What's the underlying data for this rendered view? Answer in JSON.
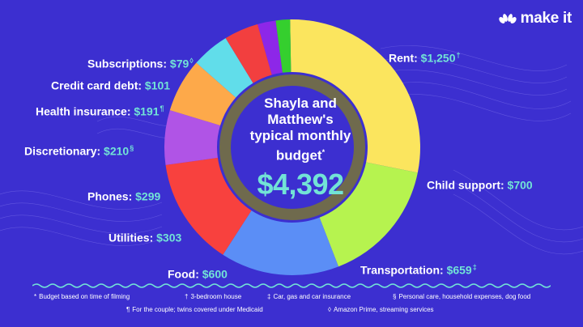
{
  "brand": {
    "name": "make it"
  },
  "colors": {
    "background": "#3c2fd0",
    "accent": "#72e3d6",
    "ring": "#6f6a4d"
  },
  "center": {
    "title_lines": [
      "Shayla and",
      "Matthew's",
      "typical monthly",
      "budget"
    ],
    "title_mark": "*",
    "total": "$4,392"
  },
  "labels": [
    {
      "name": "Rent: ",
      "value": "$1,250",
      "mark": "†"
    },
    {
      "name": "Child support: ",
      "value": "$700",
      "mark": ""
    },
    {
      "name": "Transportation: ",
      "value": "$659",
      "mark": "‡"
    },
    {
      "name": "Food: ",
      "value": "$600",
      "mark": ""
    },
    {
      "name": "Utilities: ",
      "value": "$303",
      "mark": ""
    },
    {
      "name": "Phones: ",
      "value": "$299",
      "mark": ""
    },
    {
      "name": "Discretionary: ",
      "value": "$210",
      "mark": "§"
    },
    {
      "name": "Health insurance: ",
      "value": "$191",
      "mark": "¶"
    },
    {
      "name": "Credit card debt: ",
      "value": "$101",
      "mark": ""
    },
    {
      "name": "Subscriptions: ",
      "value": "$79",
      "mark": "◊"
    }
  ],
  "chart_data": {
    "type": "pie",
    "title": "Shayla and Matthew's typical monthly budget*",
    "total": 4392,
    "categories": [
      "Rent",
      "Child support",
      "Transportation",
      "Food",
      "Utilities",
      "Phones",
      "Discretionary",
      "Health insurance",
      "Credit card debt",
      "Subscriptions"
    ],
    "values": [
      1250,
      700,
      659,
      600,
      303,
      299,
      210,
      191,
      101,
      79
    ],
    "colors": [
      "#fbe55e",
      "#b6f34f",
      "#5b8ef6",
      "#f8413e",
      "#b054e6",
      "#fda94a",
      "#61ddea",
      "#f23f3f",
      "#8d27e8",
      "#35cf2e"
    ]
  },
  "footnotes": [
    {
      "mark": "*",
      "text": "Budget based on time of filming"
    },
    {
      "mark": "†",
      "text": "3-bedroom house"
    },
    {
      "mark": "‡",
      "text": "Car, gas and car insurance"
    },
    {
      "mark": "§",
      "text": "Personal care, household expenses, dog food"
    },
    {
      "mark": "¶",
      "text": "For the couple; twins covered under Medicaid"
    },
    {
      "mark": "◊",
      "text": "Amazon Prime, streaming services"
    }
  ]
}
